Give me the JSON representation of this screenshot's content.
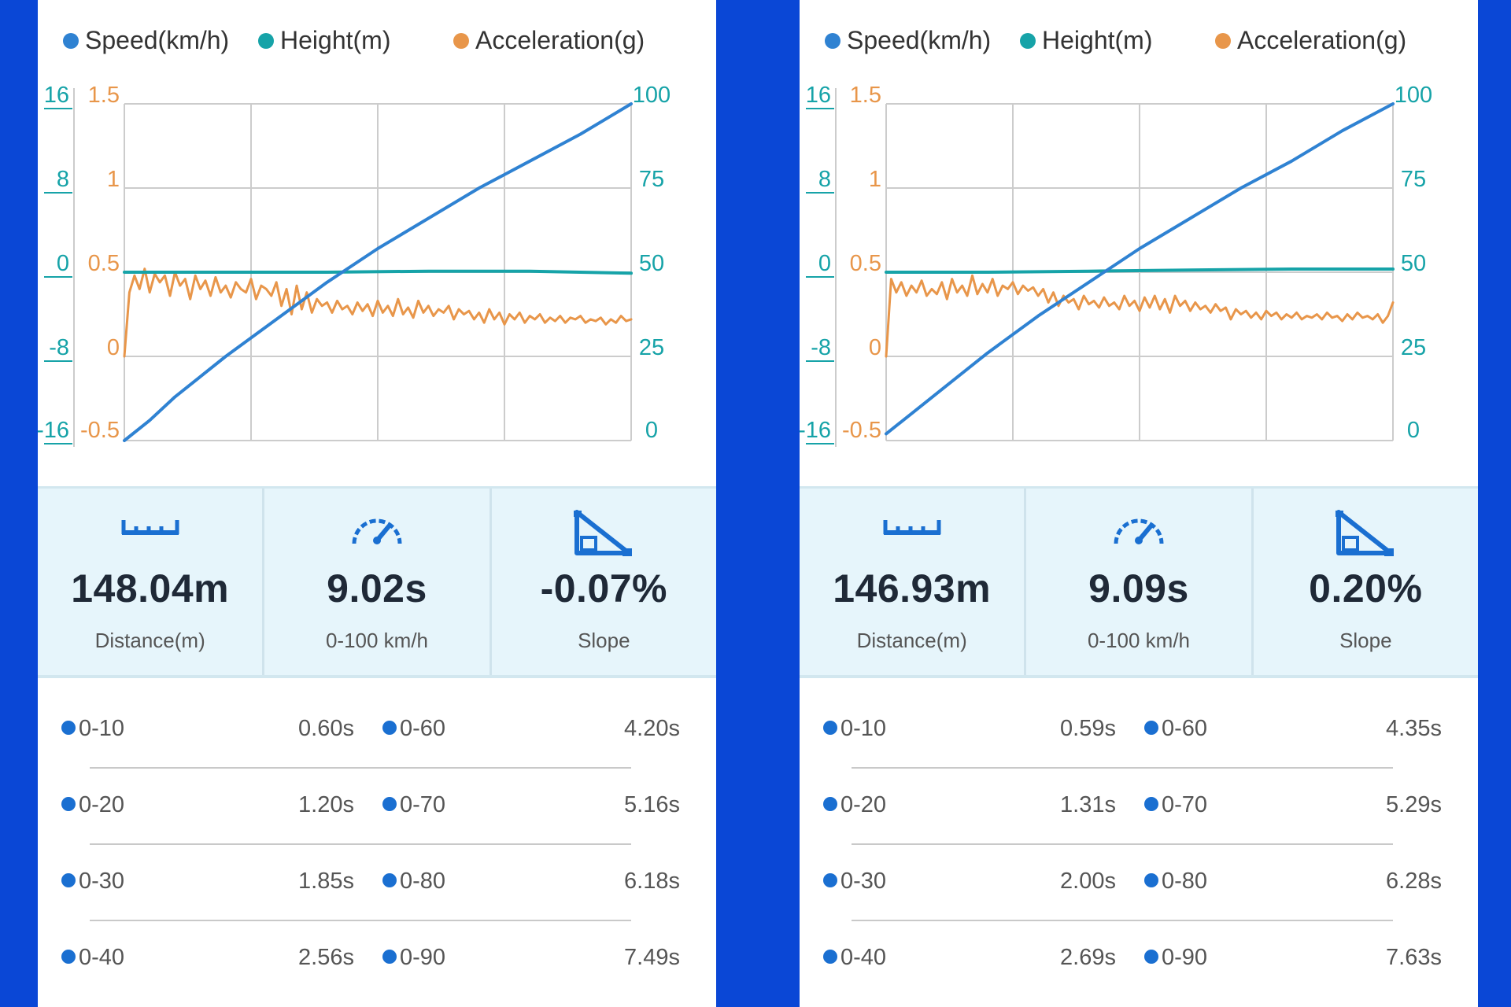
{
  "colors": {
    "speed": "#2f82d2",
    "height": "#16a3a8",
    "acceleration": "#e8964a",
    "grid": "#cccccc",
    "dot": "#1a6fd1"
  },
  "panels": [
    {
      "legend": [
        "Speed(km/h)",
        "Height(m)",
        "Acceleration(g)"
      ],
      "chart_data": {
        "type": "line",
        "axes": {
          "height_ticks": [
            "16",
            "8",
            "0",
            "-8",
            "-16"
          ],
          "acceleration_ticks": [
            "1.5",
            "1",
            "0.5",
            "0",
            "-0.5"
          ],
          "speed_ticks": [
            "100",
            "75",
            "50",
            "25",
            "0"
          ],
          "height_range": [
            -16,
            16
          ],
          "acceleration_range": [
            -0.5,
            1.5
          ],
          "speed_range": [
            0,
            100
          ]
        },
        "grid": true,
        "series": [
          {
            "name": "Speed(km/h)",
            "axis": "speed",
            "x": [
              0,
              0.05,
              0.1,
              0.2,
              0.3,
              0.4,
              0.5,
              0.6,
              0.7,
              0.8,
              0.9,
              1.0
            ],
            "y": [
              0,
              6,
              13,
              25,
              36,
              47,
              57,
              66,
              75,
              83,
              91,
              100
            ]
          },
          {
            "name": "Height(m)",
            "axis": "height",
            "x": [
              0,
              0.2,
              0.4,
              0.6,
              0.8,
              1.0
            ],
            "y": [
              0,
              0,
              0,
              0.1,
              0.1,
              -0.1
            ]
          },
          {
            "name": "Acceleration(g)",
            "axis": "acceleration",
            "x": [
              0,
              0.01,
              0.02,
              0.03,
              0.04,
              0.05,
              0.06,
              0.07,
              0.08,
              0.09,
              0.1,
              0.11,
              0.12,
              0.13,
              0.14,
              0.15,
              0.16,
              0.17,
              0.18,
              0.19,
              0.2,
              0.21,
              0.22,
              0.23,
              0.24,
              0.25,
              0.26,
              0.27,
              0.28,
              0.29,
              0.3,
              0.31,
              0.32,
              0.33,
              0.34,
              0.35,
              0.36,
              0.37,
              0.38,
              0.39,
              0.4,
              0.41,
              0.42,
              0.43,
              0.44,
              0.45,
              0.46,
              0.47,
              0.48,
              0.49,
              0.5,
              0.51,
              0.52,
              0.53,
              0.54,
              0.55,
              0.56,
              0.57,
              0.58,
              0.59,
              0.6,
              0.61,
              0.62,
              0.63,
              0.64,
              0.65,
              0.66,
              0.67,
              0.68,
              0.69,
              0.7,
              0.71,
              0.72,
              0.73,
              0.74,
              0.75,
              0.76,
              0.77,
              0.78,
              0.79,
              0.8,
              0.81,
              0.82,
              0.83,
              0.84,
              0.85,
              0.86,
              0.87,
              0.88,
              0.89,
              0.9,
              0.91,
              0.92,
              0.93,
              0.94,
              0.95,
              0.96,
              0.97,
              0.98,
              0.99,
              1.0
            ],
            "y": [
              0.0,
              0.38,
              0.48,
              0.4,
              0.52,
              0.38,
              0.49,
              0.44,
              0.48,
              0.36,
              0.5,
              0.42,
              0.46,
              0.34,
              0.48,
              0.4,
              0.45,
              0.36,
              0.47,
              0.38,
              0.42,
              0.35,
              0.44,
              0.4,
              0.38,
              0.46,
              0.34,
              0.42,
              0.4,
              0.36,
              0.44,
              0.3,
              0.4,
              0.25,
              0.42,
              0.28,
              0.38,
              0.26,
              0.34,
              0.3,
              0.32,
              0.26,
              0.33,
              0.28,
              0.3,
              0.25,
              0.32,
              0.27,
              0.31,
              0.24,
              0.33,
              0.26,
              0.3,
              0.24,
              0.34,
              0.25,
              0.29,
              0.23,
              0.33,
              0.26,
              0.3,
              0.24,
              0.28,
              0.26,
              0.3,
              0.22,
              0.28,
              0.25,
              0.27,
              0.22,
              0.26,
              0.2,
              0.28,
              0.22,
              0.26,
              0.19,
              0.25,
              0.22,
              0.26,
              0.2,
              0.24,
              0.22,
              0.25,
              0.2,
              0.23,
              0.21,
              0.24,
              0.2,
              0.23,
              0.22,
              0.24,
              0.2,
              0.22,
              0.21,
              0.23,
              0.19,
              0.22,
              0.2,
              0.24,
              0.21,
              0.22
            ]
          }
        ]
      },
      "stats": [
        {
          "icon": "ruler-icon",
          "value": "148.04m",
          "label": "Distance(m)"
        },
        {
          "icon": "speedometer-icon",
          "value": "9.02s",
          "label": "0-100 km/h"
        },
        {
          "icon": "slope-icon",
          "value": "-0.07%",
          "label": "Slope"
        }
      ],
      "times": [
        [
          {
            "range": "0-10",
            "time": "0.60s"
          },
          {
            "range": "0-60",
            "time": "4.20s"
          }
        ],
        [
          {
            "range": "0-20",
            "time": "1.20s"
          },
          {
            "range": "0-70",
            "time": "5.16s"
          }
        ],
        [
          {
            "range": "0-30",
            "time": "1.85s"
          },
          {
            "range": "0-80",
            "time": "6.18s"
          }
        ],
        [
          {
            "range": "0-40",
            "time": "2.56s"
          },
          {
            "range": "0-90",
            "time": "7.49s"
          }
        ]
      ]
    },
    {
      "legend": [
        "Speed(km/h)",
        "Height(m)",
        "Acceleration(g)"
      ],
      "chart_data": {
        "type": "line",
        "axes": {
          "height_ticks": [
            "16",
            "8",
            "0",
            "-8",
            "-16"
          ],
          "acceleration_ticks": [
            "1.5",
            "1",
            "0.5",
            "0",
            "-0.5"
          ],
          "speed_ticks": [
            "100",
            "75",
            "50",
            "25",
            "0"
          ],
          "height_range": [
            -16,
            16
          ],
          "acceleration_range": [
            -0.5,
            1.5
          ],
          "speed_range": [
            0,
            100
          ]
        },
        "grid": true,
        "series": [
          {
            "name": "Speed(km/h)",
            "axis": "speed",
            "x": [
              0,
              0.05,
              0.1,
              0.2,
              0.3,
              0.4,
              0.5,
              0.6,
              0.7,
              0.8,
              0.9,
              1.0
            ],
            "y": [
              2,
              8,
              14,
              26,
              37,
              47,
              57,
              66,
              75,
              83,
              92,
              100
            ]
          },
          {
            "name": "Height(m)",
            "axis": "height",
            "x": [
              0,
              0.2,
              0.4,
              0.6,
              0.8,
              1.0
            ],
            "y": [
              0,
              0,
              0.1,
              0.2,
              0.3,
              0.3
            ]
          },
          {
            "name": "Acceleration(g)",
            "axis": "acceleration",
            "x": [
              0,
              0.01,
              0.02,
              0.03,
              0.04,
              0.05,
              0.06,
              0.07,
              0.08,
              0.09,
              0.1,
              0.11,
              0.12,
              0.13,
              0.14,
              0.15,
              0.16,
              0.17,
              0.18,
              0.19,
              0.2,
              0.21,
              0.22,
              0.23,
              0.24,
              0.25,
              0.26,
              0.27,
              0.28,
              0.29,
              0.3,
              0.31,
              0.32,
              0.33,
              0.34,
              0.35,
              0.36,
              0.37,
              0.38,
              0.39,
              0.4,
              0.41,
              0.42,
              0.43,
              0.44,
              0.45,
              0.46,
              0.47,
              0.48,
              0.49,
              0.5,
              0.51,
              0.52,
              0.53,
              0.54,
              0.55,
              0.56,
              0.57,
              0.58,
              0.59,
              0.6,
              0.61,
              0.62,
              0.63,
              0.64,
              0.65,
              0.66,
              0.67,
              0.68,
              0.69,
              0.7,
              0.71,
              0.72,
              0.73,
              0.74,
              0.75,
              0.76,
              0.77,
              0.78,
              0.79,
              0.8,
              0.81,
              0.82,
              0.83,
              0.84,
              0.85,
              0.86,
              0.87,
              0.88,
              0.89,
              0.9,
              0.91,
              0.92,
              0.93,
              0.94,
              0.95,
              0.96,
              0.97,
              0.98,
              0.99,
              1.0
            ],
            "y": [
              0.0,
              0.46,
              0.38,
              0.44,
              0.36,
              0.42,
              0.38,
              0.45,
              0.36,
              0.4,
              0.37,
              0.44,
              0.34,
              0.46,
              0.38,
              0.42,
              0.36,
              0.48,
              0.37,
              0.43,
              0.38,
              0.46,
              0.36,
              0.42,
              0.4,
              0.44,
              0.37,
              0.42,
              0.39,
              0.41,
              0.36,
              0.4,
              0.32,
              0.38,
              0.3,
              0.36,
              0.32,
              0.34,
              0.28,
              0.36,
              0.31,
              0.33,
              0.29,
              0.35,
              0.3,
              0.32,
              0.28,
              0.36,
              0.3,
              0.33,
              0.27,
              0.35,
              0.29,
              0.36,
              0.28,
              0.34,
              0.26,
              0.36,
              0.3,
              0.33,
              0.27,
              0.32,
              0.28,
              0.3,
              0.26,
              0.31,
              0.27,
              0.29,
              0.22,
              0.28,
              0.25,
              0.27,
              0.23,
              0.26,
              0.22,
              0.27,
              0.24,
              0.26,
              0.22,
              0.25,
              0.23,
              0.26,
              0.22,
              0.24,
              0.23,
              0.25,
              0.22,
              0.26,
              0.23,
              0.24,
              0.21,
              0.25,
              0.22,
              0.26,
              0.23,
              0.24,
              0.22,
              0.25,
              0.2,
              0.24,
              0.32
            ]
          }
        ]
      },
      "stats": [
        {
          "icon": "ruler-icon",
          "value": "146.93m",
          "label": "Distance(m)"
        },
        {
          "icon": "speedometer-icon",
          "value": "9.09s",
          "label": "0-100 km/h"
        },
        {
          "icon": "slope-icon",
          "value": "0.20%",
          "label": "Slope"
        }
      ],
      "times": [
        [
          {
            "range": "0-10",
            "time": "0.59s"
          },
          {
            "range": "0-60",
            "time": "4.35s"
          }
        ],
        [
          {
            "range": "0-20",
            "time": "1.31s"
          },
          {
            "range": "0-70",
            "time": "5.29s"
          }
        ],
        [
          {
            "range": "0-30",
            "time": "2.00s"
          },
          {
            "range": "0-80",
            "time": "6.28s"
          }
        ],
        [
          {
            "range": "0-40",
            "time": "2.69s"
          },
          {
            "range": "0-90",
            "time": "7.63s"
          }
        ]
      ]
    }
  ]
}
